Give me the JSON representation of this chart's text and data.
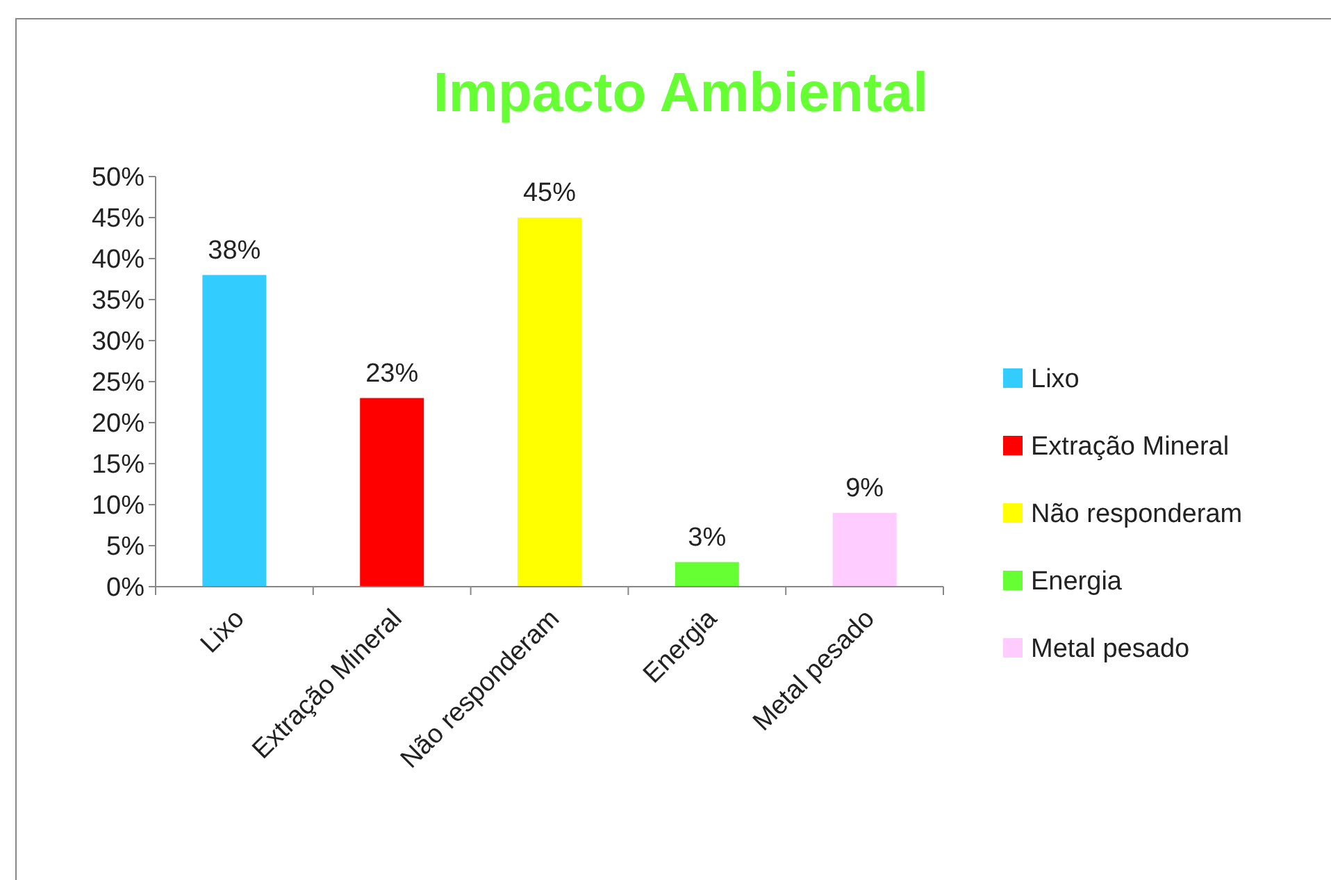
{
  "chart_data": {
    "type": "bar",
    "title": "Impacto Ambiental",
    "categories": [
      "Lixo",
      "Extração Mineral",
      "Não responderam",
      "Energia",
      "Metal pesado"
    ],
    "series": [
      {
        "name": "Lixo",
        "color": "#33ccff",
        "values": [
          38,
          null,
          null,
          null,
          null
        ],
        "value_labels": [
          "38%",
          null,
          null,
          null,
          null
        ]
      },
      {
        "name": "Extração Mineral",
        "color": "#ff0000",
        "values": [
          null,
          23,
          null,
          null,
          null
        ],
        "value_labels": [
          null,
          "23%",
          null,
          null,
          null
        ]
      },
      {
        "name": "Não responderam",
        "color": "#ffff00",
        "values": [
          null,
          null,
          45,
          null,
          null
        ],
        "value_labels": [
          null,
          null,
          "45%",
          null,
          null
        ]
      },
      {
        "name": "Energia",
        "color": "#66ff33",
        "values": [
          null,
          null,
          null,
          3,
          null
        ],
        "value_labels": [
          null,
          null,
          null,
          "3%",
          null
        ]
      },
      {
        "name": "Metal pesado",
        "color": "#ffccff",
        "values": [
          null,
          null,
          null,
          null,
          9
        ],
        "value_labels": [
          null,
          null,
          null,
          null,
          "9%"
        ]
      }
    ],
    "ylim": [
      0,
      50
    ],
    "yticks": [
      {
        "value": 0,
        "label": "0%"
      },
      {
        "value": 5,
        "label": "5%"
      },
      {
        "value": 10,
        "label": "10%"
      },
      {
        "value": 15,
        "label": "15%"
      },
      {
        "value": 20,
        "label": "20%"
      },
      {
        "value": 25,
        "label": "25%"
      },
      {
        "value": 30,
        "label": "30%"
      },
      {
        "value": 35,
        "label": "35%"
      },
      {
        "value": 40,
        "label": "40%"
      },
      {
        "value": 45,
        "label": "45%"
      },
      {
        "value": 50,
        "label": "50%"
      }
    ],
    "legend": "right",
    "grid": false
  }
}
